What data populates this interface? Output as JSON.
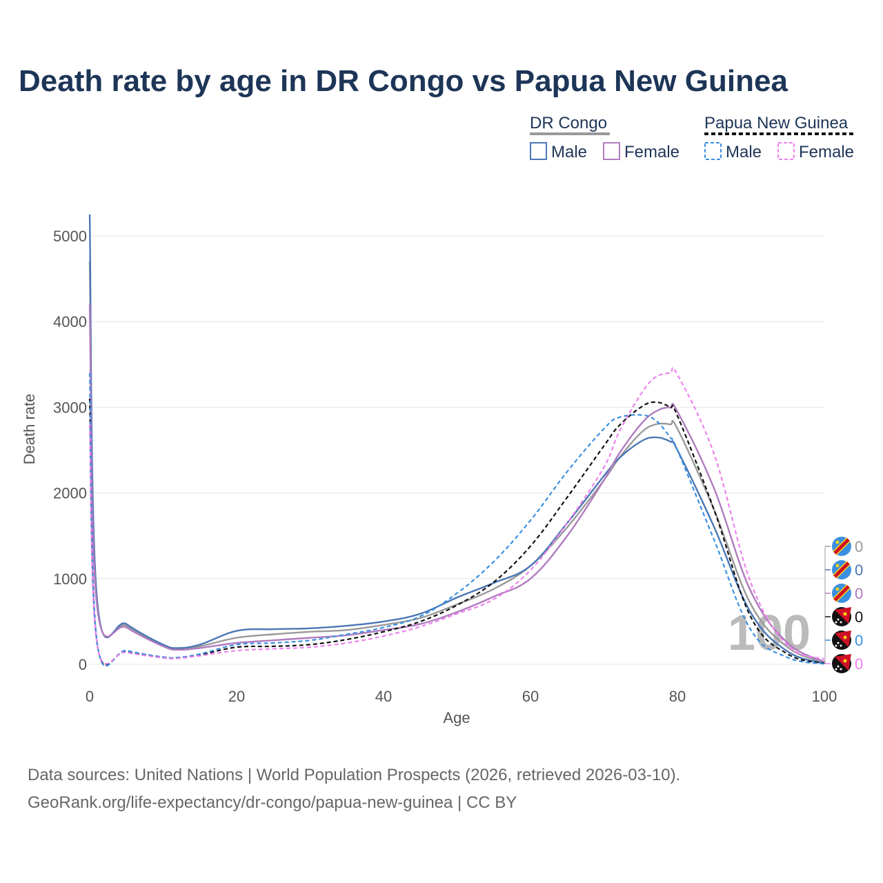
{
  "chart_data": {
    "type": "line",
    "title": "Death rate by age in DR Congo vs Papua New Guinea",
    "xlabel": "Age",
    "ylabel": "Death rate",
    "xlim": [
      0,
      100
    ],
    "ylim": [
      0,
      5400
    ],
    "x_ticks": [
      0,
      20,
      40,
      60,
      80,
      100
    ],
    "y_ticks": [
      0,
      1000,
      2000,
      3000,
      4000,
      5000
    ],
    "grid": true,
    "legend_position": "top-right",
    "legend_groups": [
      {
        "name": "DR Congo",
        "line_color": "#999999",
        "line_style": "solid",
        "entries": [
          {
            "label": "Male",
            "color": "#4a77b4",
            "style": "solid"
          },
          {
            "label": "Female",
            "color": "#b07bbf",
            "style": "solid"
          }
        ]
      },
      {
        "name": "Papua New Guinea",
        "line_color": "#111111",
        "line_style": "dashed",
        "entries": [
          {
            "label": "Male",
            "color": "#3b8fe0",
            "style": "dashed"
          },
          {
            "label": "Female",
            "color": "#ee82ee",
            "style": "dashed"
          }
        ]
      }
    ],
    "x": [
      0,
      1,
      5,
      10,
      12,
      15,
      20,
      25,
      30,
      35,
      40,
      45,
      50,
      55,
      60,
      65,
      70,
      72,
      75,
      77,
      79,
      80,
      85,
      90,
      95,
      100
    ],
    "series": [
      {
        "name": "DR Congo total",
        "country": "DR Congo",
        "color": "#999999",
        "style": "solid",
        "values": [
          4700,
          720,
          450,
          220,
          180,
          210,
          310,
          350,
          380,
          400,
          460,
          540,
          700,
          880,
          1150,
          1600,
          2150,
          2400,
          2700,
          2800,
          2800,
          2750,
          1800,
          700,
          200,
          20
        ]
      },
      {
        "name": "DR Congo male",
        "country": "DR Congo",
        "color": "#4a77b4",
        "style": "solid",
        "values": [
          5250,
          760,
          470,
          230,
          190,
          230,
          390,
          410,
          420,
          450,
          500,
          590,
          780,
          950,
          1150,
          1650,
          2200,
          2400,
          2600,
          2650,
          2600,
          2500,
          1600,
          600,
          150,
          10
        ]
      },
      {
        "name": "DR Congo female",
        "country": "DR Congo",
        "color": "#b07bbf",
        "style": "solid",
        "values": [
          4200,
          680,
          430,
          210,
          170,
          190,
          250,
          280,
          310,
          340,
          400,
          470,
          610,
          790,
          1000,
          1500,
          2150,
          2450,
          2800,
          2950,
          3000,
          2950,
          2050,
          850,
          250,
          30
        ]
      },
      {
        "name": "Papua New Guinea total",
        "country": "Papua New Guinea",
        "color": "#111111",
        "style": "dashed",
        "values": [
          3100,
          250,
          150,
          80,
          75,
          110,
          200,
          210,
          230,
          290,
          380,
          500,
          690,
          960,
          1380,
          1950,
          2550,
          2780,
          3000,
          3060,
          3000,
          2900,
          1800,
          550,
          120,
          10
        ]
      },
      {
        "name": "Papua New Guinea male",
        "country": "Papua New Guinea",
        "color": "#3b8fe0",
        "style": "dashed",
        "values": [
          3400,
          260,
          160,
          85,
          80,
          120,
          230,
          250,
          280,
          350,
          430,
          560,
          830,
          1200,
          1680,
          2250,
          2750,
          2880,
          2910,
          2850,
          2650,
          2500,
          1450,
          400,
          80,
          5
        ]
      },
      {
        "name": "Papua New Guinea female",
        "country": "Papua New Guinea",
        "color": "#ee82ee",
        "style": "dashed",
        "values": [
          2800,
          240,
          140,
          75,
          70,
          100,
          160,
          180,
          200,
          250,
          330,
          440,
          590,
          760,
          1100,
          1650,
          2300,
          2700,
          3150,
          3350,
          3400,
          3380,
          2450,
          950,
          220,
          60
        ]
      }
    ],
    "end_labels": [
      {
        "value": "0",
        "color": "#999999",
        "flag": "dr-congo"
      },
      {
        "value": "0",
        "color": "#4a77b4",
        "flag": "dr-congo"
      },
      {
        "value": "0",
        "color": "#b07bbf",
        "flag": "dr-congo"
      },
      {
        "value": "0",
        "color": "#111111",
        "flag": "papua-new-guinea"
      },
      {
        "value": "0",
        "color": "#3b8fe0",
        "flag": "papua-new-guinea"
      },
      {
        "value": "0",
        "color": "#ee82ee",
        "flag": "papua-new-guinea"
      }
    ],
    "watermark": "100",
    "source_line_1": "Data sources: United Nations | World Population Prospects (2026, retrieved 2026-03-10).",
    "source_line_2": "GeoRank.org/life-expectancy/dr-congo/papua-new-guinea | CC BY"
  }
}
